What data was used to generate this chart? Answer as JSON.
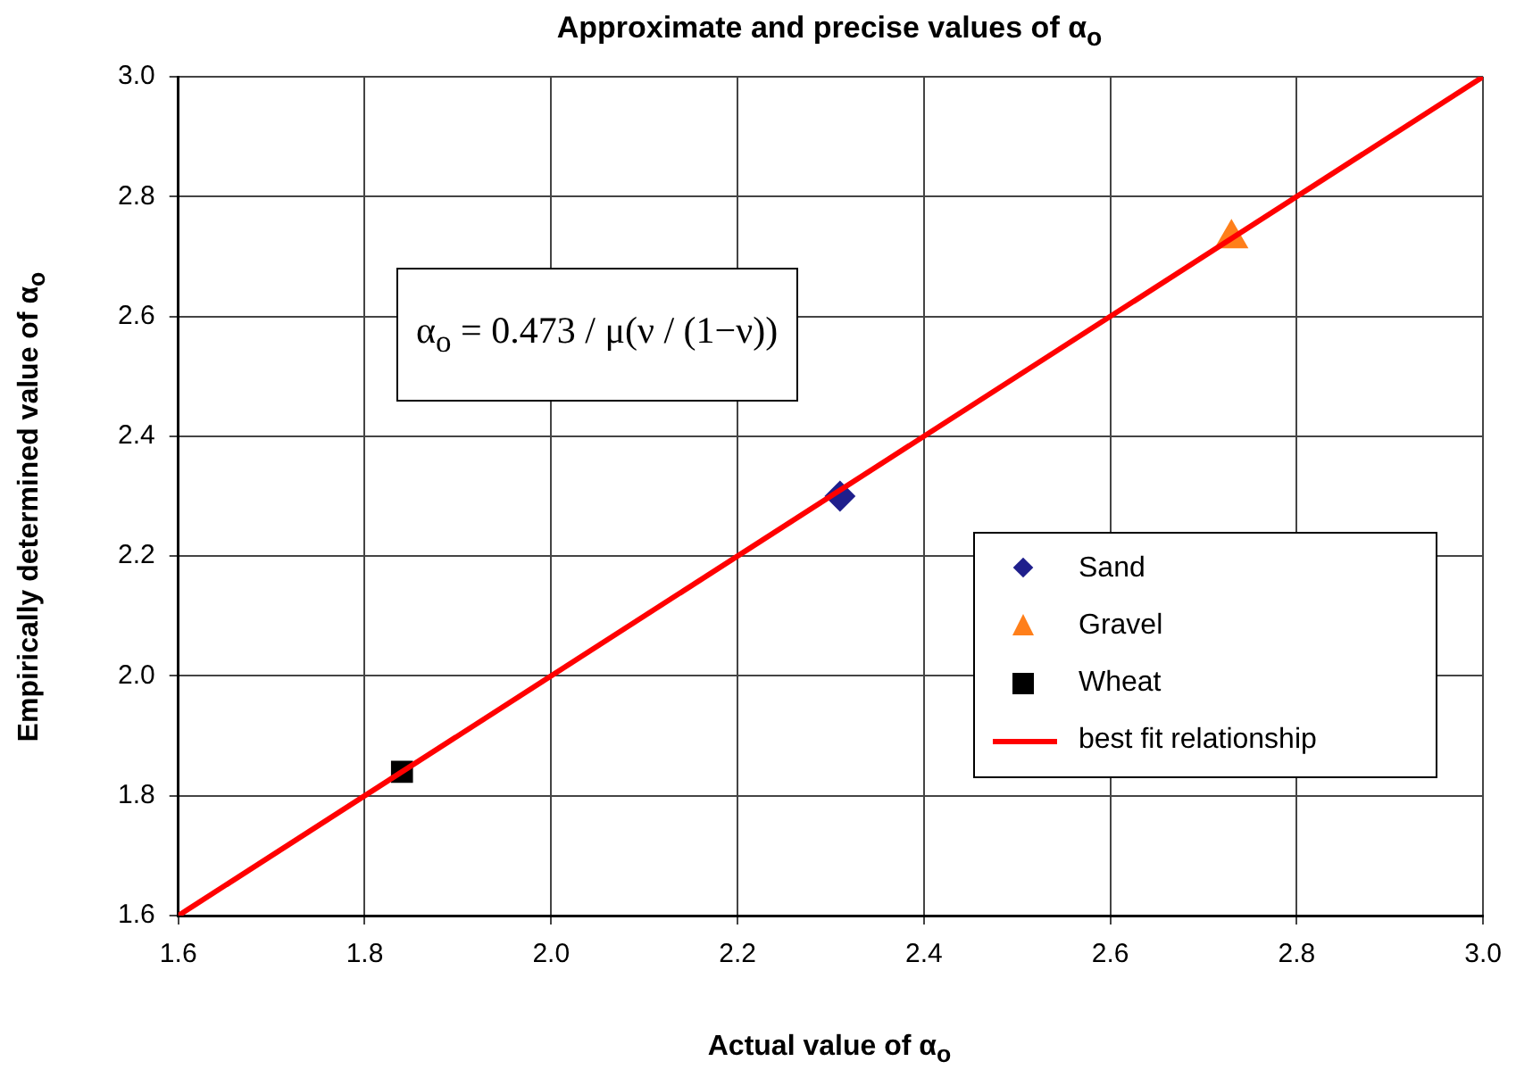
{
  "chart_data": {
    "type": "scatter",
    "title": "Approximate and precise values of α$_{o}$",
    "xlabel": "Actual value of α$_{o}$",
    "ylabel": "Empirically determined value of α$_{o}$",
    "annotations": [
      "α$_{o}$ = 0.473 / μ(ν / (1−ν))"
    ],
    "series": [
      {
        "name": "Sand",
        "color": "#1f1f8c",
        "x": [
          2.31
        ],
        "values": [
          2.3
        ],
        "marker": "diamond"
      },
      {
        "name": "Gravel",
        "color": "#ff7f1a",
        "x": [
          2.73
        ],
        "values": [
          2.73
        ],
        "marker": "triangle"
      },
      {
        "name": "Wheat",
        "color": "#000000",
        "x": [
          1.84
        ],
        "values": [
          1.84
        ],
        "marker": "square"
      },
      {
        "name": "best fit relationship",
        "type": "line",
        "color": "#ff0000",
        "x": [
          1.6,
          3.0
        ],
        "values": [
          1.6,
          3.0
        ],
        "marker": "none"
      }
    ],
    "xlim": [
      1.6,
      3.0
    ],
    "ylim": [
      1.6,
      3.0
    ],
    "xticks": [
      1.6,
      1.8,
      {
        "value": 2,
        "label": "2.0"
      },
      2.2,
      2.4,
      2.6,
      2.8,
      {
        "value": 3,
        "label": "3.0"
      }
    ],
    "yticks": [
      1.6,
      1.8,
      {
        "value": 2,
        "label": "2.0"
      },
      2.2,
      2.4,
      2.6,
      2.8,
      {
        "value": 3,
        "label": "3.0"
      }
    ],
    "grid": true,
    "legend": "right"
  }
}
